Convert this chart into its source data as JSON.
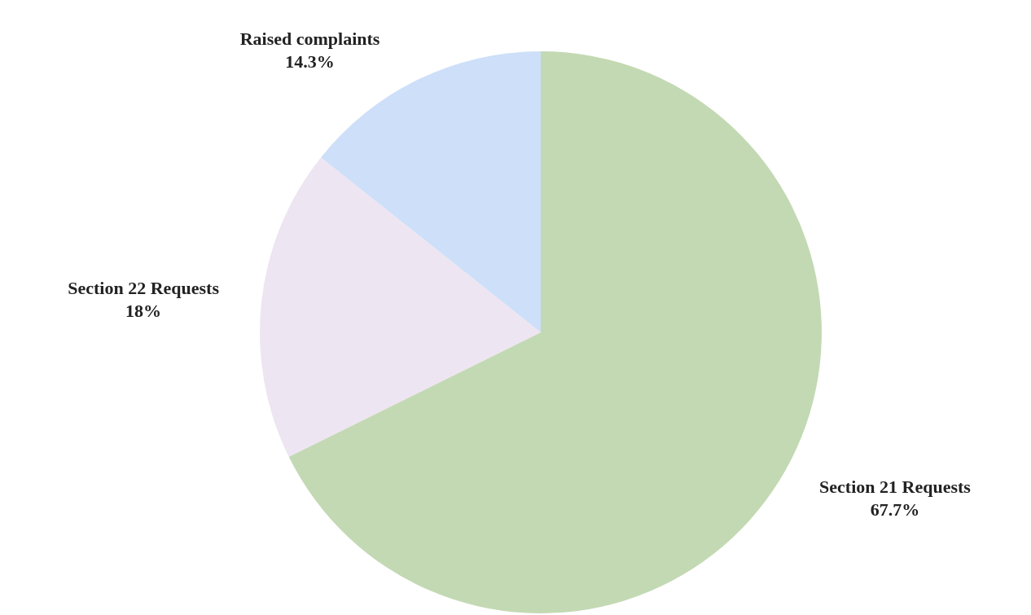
{
  "chart_data": {
    "type": "pie",
    "categories": [
      "Section 21 Requests",
      "Section 22 Requests",
      "Raised complaints"
    ],
    "values": [
      67.7,
      18,
      14.3
    ],
    "colors": [
      "#c3d9b3",
      "#ede5f1",
      "#cddff9"
    ],
    "value_labels": [
      "67.7%",
      "18%",
      "14.3%"
    ]
  }
}
